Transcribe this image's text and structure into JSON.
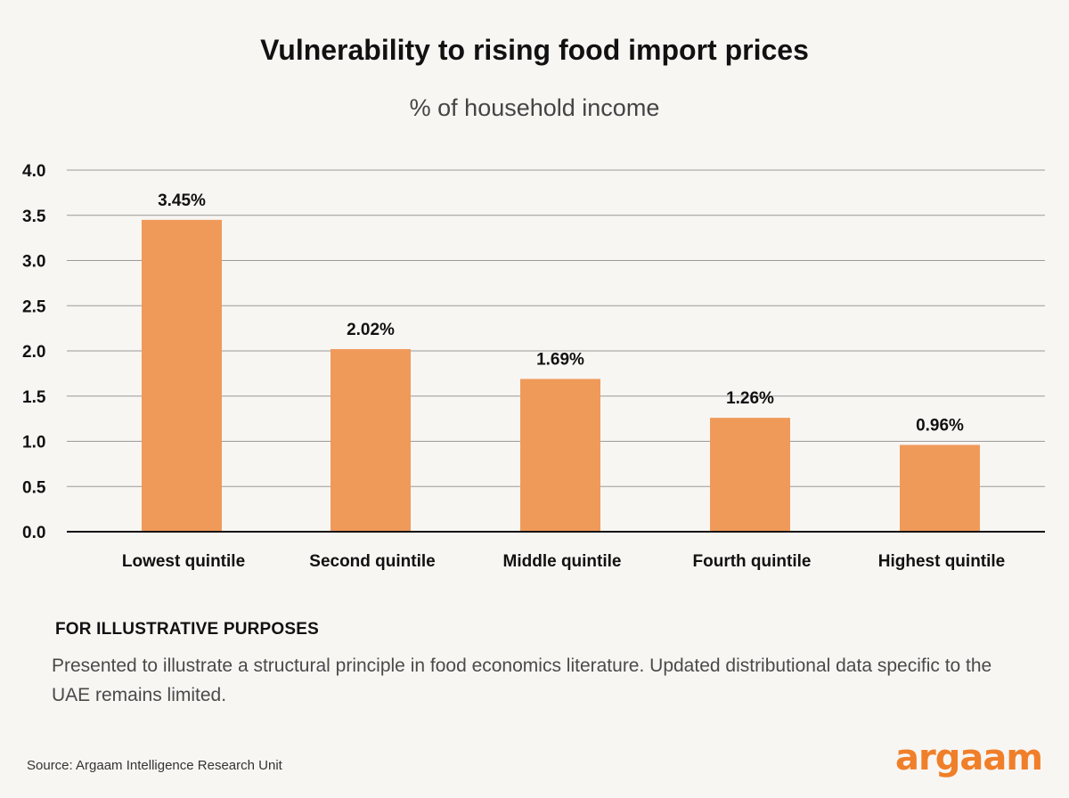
{
  "title": "Vulnerability to rising food import prices",
  "subtitle": "% of household income",
  "chart_data": {
    "type": "bar",
    "categories": [
      "Lowest quintile",
      "Second quintile",
      "Middle quintile",
      "Fourth quintile",
      "Highest quintile"
    ],
    "values": [
      3.45,
      2.02,
      1.69,
      1.26,
      0.96
    ],
    "data_labels": [
      "3.45%",
      "2.02%",
      "1.69%",
      "1.26%",
      "0.96%"
    ],
    "yticks": [
      "0.0",
      "0.5",
      "1.0",
      "1.5",
      "2.0",
      "2.5",
      "3.0",
      "3.5",
      "4.0"
    ],
    "ylim": [
      0,
      4
    ],
    "grid": true,
    "legend": "none",
    "bar_color": "#f09a5a"
  },
  "note": {
    "heading": "FOR ILLUSTRATIVE PURPOSES",
    "body": "Presented to illustrate a structural principle in food economics literature. Updated distributional data specific to the UAE remains limited."
  },
  "source": "Source: Argaam Intelligence Research Unit",
  "logo_text": "argaam",
  "logo_color": "#f07f2a"
}
